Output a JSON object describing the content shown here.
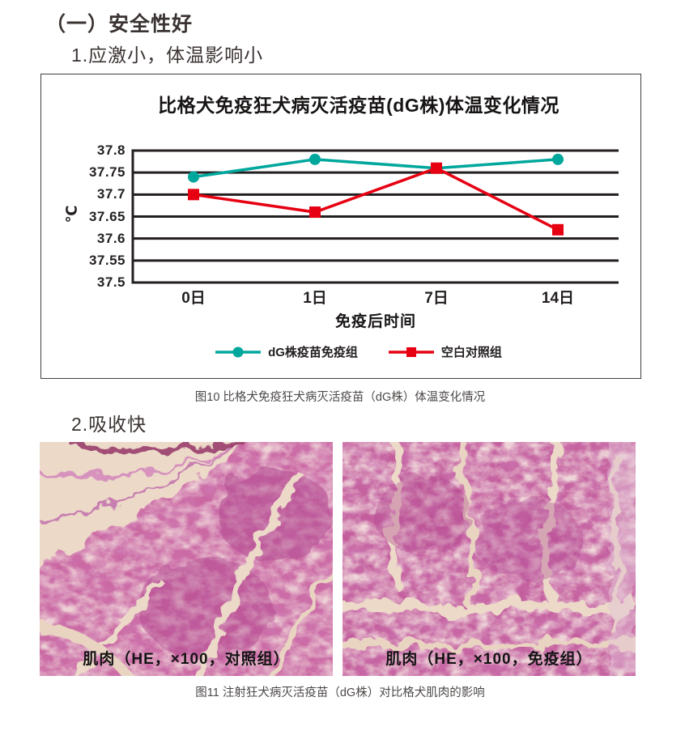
{
  "page": {
    "heading": "（一）安全性好",
    "sub1": "1.应激小，体温影响小",
    "sub2": "2.吸收快",
    "fig10_caption": "图10 比格犬免疫狂犬病灭活疫苗（dG株）体温变化情况",
    "fig11_caption": "图11 注射狂犬病灭活疫苗（dG株）对比格犬肌肉的影响"
  },
  "chart_data": {
    "type": "line",
    "title": "比格犬免疫狂犬病灭活疫苗(dG株)体温变化情况",
    "categories": [
      "0日",
      "1日",
      "7日",
      "14日"
    ],
    "series": [
      {
        "name": "dG株疫苗免疫组",
        "color": "#00a79d",
        "marker": "circle",
        "values": [
          37.74,
          37.78,
          37.76,
          37.78
        ]
      },
      {
        "name": "空白对照组",
        "color": "#e60012",
        "marker": "square",
        "values": [
          37.7,
          37.66,
          37.76,
          37.62
        ]
      }
    ],
    "xlabel": "免疫后时间",
    "ylabel": "℃",
    "ylim": [
      37.5,
      37.8
    ],
    "ytick_step": 0.05,
    "yticks": [
      "37.8",
      "37.75",
      "37.7",
      "37.65",
      "37.6",
      "37.55",
      "37.5"
    ],
    "grid": true,
    "legend_position": "bottom"
  },
  "histology": {
    "left_label": "肌肉（HE，×100，对照组）",
    "right_label": "肌肉（HE，×100，免疫组）"
  },
  "colors": {
    "teal": "#00a79d",
    "red": "#e60012",
    "grid": "#231f20",
    "heading_text": "#3a3332",
    "caption_text": "#4c4948"
  }
}
